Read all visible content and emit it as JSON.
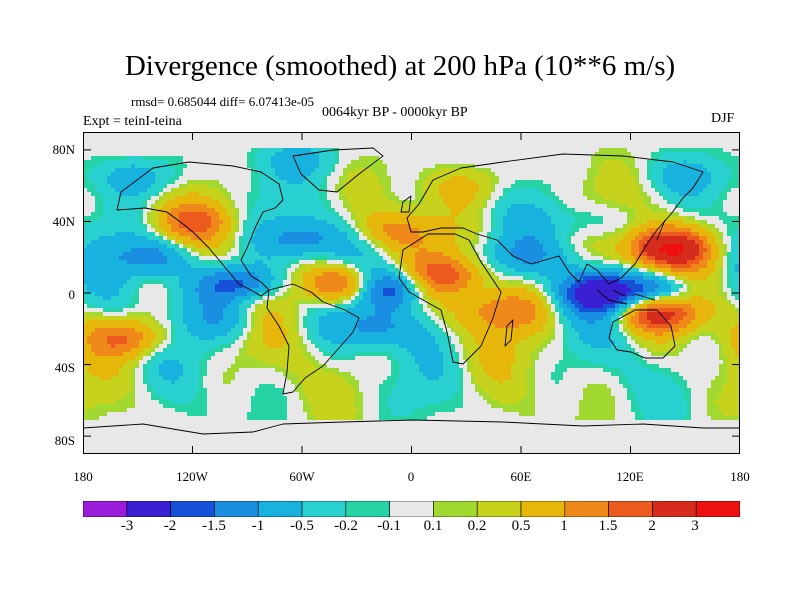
{
  "title": "Divergence (smoothed) at 200 hPa (10**6 m/s)",
  "stats": "rmsd= 0.685044 diff= 6.07413e-05",
  "period": "0064kyr BP - 0000kyr BP",
  "experiment": "Expt = teinI-teina",
  "season": "DJF",
  "axes": {
    "lat_labels": [
      "80N",
      "40N",
      "0",
      "40S",
      "80S"
    ],
    "lat_values": [
      80,
      40,
      0,
      -40,
      -80
    ],
    "lon_labels": [
      "180",
      "120W",
      "60W",
      "0",
      "60E",
      "120E",
      "180"
    ],
    "lon_values": [
      -180,
      -120,
      -60,
      0,
      60,
      120,
      180
    ]
  },
  "colorbar": {
    "labels": [
      "-3",
      "-2",
      "-1.5",
      "-1",
      "-0.5",
      "-0.2",
      "-0.1",
      "0.1",
      "0.2",
      "0.5",
      "1",
      "1.5",
      "2",
      "3"
    ],
    "levels": [
      -3,
      -2,
      -1.5,
      -1,
      -0.5,
      -0.2,
      -0.1,
      0.1,
      0.2,
      0.5,
      1,
      1.5,
      2,
      3
    ],
    "colors": [
      "#9a1dd9",
      "#3a20d2",
      "#1552d8",
      "#1a8ee0",
      "#17b2dd",
      "#28d0d0",
      "#25d3a4",
      "#e8e8e8",
      "#a2d930",
      "#c7d21c",
      "#e6b70a",
      "#ef8a1a",
      "#ec5a1e",
      "#d52c1e",
      "#ee1010"
    ]
  },
  "field_features": [
    {
      "lon": -95,
      "lat": 5,
      "value": -2.0
    },
    {
      "lon": -15,
      "lat": 3,
      "value": -2.2
    },
    {
      "lon": 105,
      "lat": 0,
      "value": -2.3
    },
    {
      "lon": 135,
      "lat": 0,
      "value": -1.8
    },
    {
      "lon": -35,
      "lat": 5,
      "value": 2.6
    },
    {
      "lon": 140,
      "lat": 25,
      "value": 2.8
    },
    {
      "lon": 135,
      "lat": -10,
      "value": 2.5
    },
    {
      "lon": 50,
      "lat": -10,
      "value": 1.2
    },
    {
      "lon": -155,
      "lat": -25,
      "value": 1.5
    },
    {
      "lon": -120,
      "lat": 40,
      "value": 1.2
    },
    {
      "lon": -10,
      "lat": 35,
      "value": 1.0
    },
    {
      "lon": 20,
      "lat": 10,
      "value": 1.4
    },
    {
      "lon": -140,
      "lat": 20,
      "value": -1.2
    },
    {
      "lon": -60,
      "lat": 30,
      "value": -1.2
    },
    {
      "lon": -20,
      "lat": -20,
      "value": -1.0
    },
    {
      "lon": 60,
      "lat": 20,
      "value": -0.8
    },
    {
      "lon": -100,
      "lat": -15,
      "value": -0.8
    },
    {
      "lon": -150,
      "lat": 65,
      "value": -0.8
    },
    {
      "lon": -60,
      "lat": 75,
      "value": -0.6
    },
    {
      "lon": 95,
      "lat": 40,
      "value": -0.5
    },
    {
      "lon": 150,
      "lat": 65,
      "value": -0.5
    },
    {
      "lon": 30,
      "lat": 60,
      "value": 0.6
    }
  ]
}
